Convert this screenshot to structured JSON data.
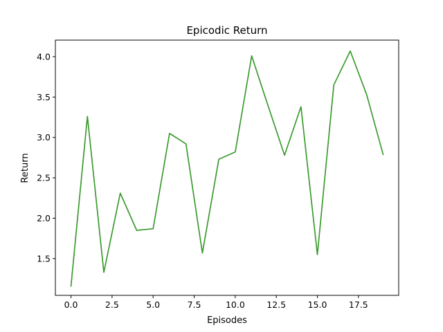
{
  "chart_data": {
    "type": "line",
    "title": "Epicodic Return",
    "xlabel": "Episodes",
    "ylabel": "Return",
    "xlim": [
      -0.95,
      19.95
    ],
    "ylim": [
      1.045,
      4.205
    ],
    "xticks": [
      0.0,
      2.5,
      5.0,
      7.5,
      10.0,
      12.5,
      15.0,
      17.5
    ],
    "xtick_labels": [
      "0.0",
      "2.5",
      "5.0",
      "7.5",
      "10.0",
      "12.5",
      "15.0",
      "17.5"
    ],
    "yticks": [
      1.5,
      2.0,
      2.5,
      3.0,
      3.5,
      4.0
    ],
    "ytick_labels": [
      "1.5",
      "2.0",
      "2.5",
      "3.0",
      "3.5",
      "4.0"
    ],
    "grid": false,
    "legend": "none",
    "series": [
      {
        "color": "#3a9a2e",
        "x": [
          0,
          1,
          2,
          3,
          4,
          5,
          6,
          7,
          8,
          9,
          10,
          11,
          12,
          13,
          14,
          15,
          16,
          17,
          18,
          19
        ],
        "y": [
          1.16,
          3.26,
          1.33,
          2.31,
          1.85,
          1.87,
          3.05,
          2.92,
          1.57,
          2.73,
          2.82,
          4.01,
          3.39,
          2.78,
          3.38,
          1.55,
          3.65,
          4.07,
          3.53,
          2.79
        ]
      }
    ]
  }
}
